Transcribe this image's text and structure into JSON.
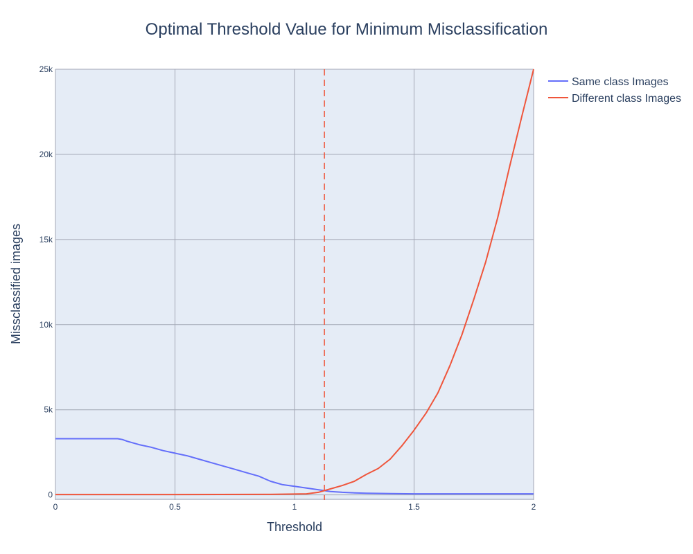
{
  "chart_data": {
    "type": "line",
    "title": "Optimal Threshold Value for Minimum Misclassification",
    "xlabel": "Threshold",
    "ylabel": "Missclassified images",
    "xlim": [
      0,
      2
    ],
    "ylim": [
      -300,
      25000
    ],
    "x_ticks": [
      {
        "value": 0,
        "label": "0"
      },
      {
        "value": 0.5,
        "label": "0.5"
      },
      {
        "value": 1,
        "label": "1"
      },
      {
        "value": 1.5,
        "label": "1.5"
      },
      {
        "value": 2,
        "label": "2"
      }
    ],
    "y_ticks": [
      {
        "value": 0,
        "label": "0"
      },
      {
        "value": 5000,
        "label": "5k"
      },
      {
        "value": 10000,
        "label": "10k"
      },
      {
        "value": 15000,
        "label": "15k"
      },
      {
        "value": 20000,
        "label": "20k"
      },
      {
        "value": 25000,
        "label": "25k"
      }
    ],
    "grid": true,
    "legend_position": "top-right",
    "threshold_line": {
      "x": 1.125,
      "color": "#ef553b",
      "style": "dashed"
    },
    "series": [
      {
        "name": "Same class Images",
        "color": "#636efa",
        "points": [
          [
            0,
            3300
          ],
          [
            0.1,
            3300
          ],
          [
            0.2,
            3300
          ],
          [
            0.26,
            3300
          ],
          [
            0.28,
            3250
          ],
          [
            0.3,
            3150
          ],
          [
            0.35,
            2950
          ],
          [
            0.4,
            2800
          ],
          [
            0.45,
            2600
          ],
          [
            0.5,
            2450
          ],
          [
            0.55,
            2300
          ],
          [
            0.6,
            2100
          ],
          [
            0.65,
            1900
          ],
          [
            0.7,
            1700
          ],
          [
            0.75,
            1500
          ],
          [
            0.8,
            1300
          ],
          [
            0.85,
            1100
          ],
          [
            0.9,
            800
          ],
          [
            0.95,
            600
          ],
          [
            1.0,
            500
          ],
          [
            1.05,
            400
          ],
          [
            1.1,
            300
          ],
          [
            1.15,
            200
          ],
          [
            1.2,
            150
          ],
          [
            1.25,
            120
          ],
          [
            1.3,
            100
          ],
          [
            1.4,
            80
          ],
          [
            1.5,
            60
          ],
          [
            1.6,
            60
          ],
          [
            1.7,
            60
          ],
          [
            1.8,
            60
          ],
          [
            1.9,
            60
          ],
          [
            2.0,
            60
          ]
        ]
      },
      {
        "name": "Different class Images",
        "color": "#ef553b",
        "points": [
          [
            0,
            20
          ],
          [
            0.5,
            20
          ],
          [
            0.9,
            30
          ],
          [
            1.0,
            50
          ],
          [
            1.05,
            60
          ],
          [
            1.1,
            150
          ],
          [
            1.15,
            350
          ],
          [
            1.2,
            550
          ],
          [
            1.25,
            800
          ],
          [
            1.3,
            1200
          ],
          [
            1.35,
            1550
          ],
          [
            1.4,
            2100
          ],
          [
            1.45,
            2900
          ],
          [
            1.5,
            3800
          ],
          [
            1.55,
            4800
          ],
          [
            1.6,
            6000
          ],
          [
            1.65,
            7600
          ],
          [
            1.7,
            9400
          ],
          [
            1.75,
            11500
          ],
          [
            1.8,
            13700
          ],
          [
            1.85,
            16300
          ],
          [
            1.9,
            19300
          ],
          [
            1.95,
            22200
          ],
          [
            2.0,
            25000
          ]
        ]
      }
    ]
  }
}
